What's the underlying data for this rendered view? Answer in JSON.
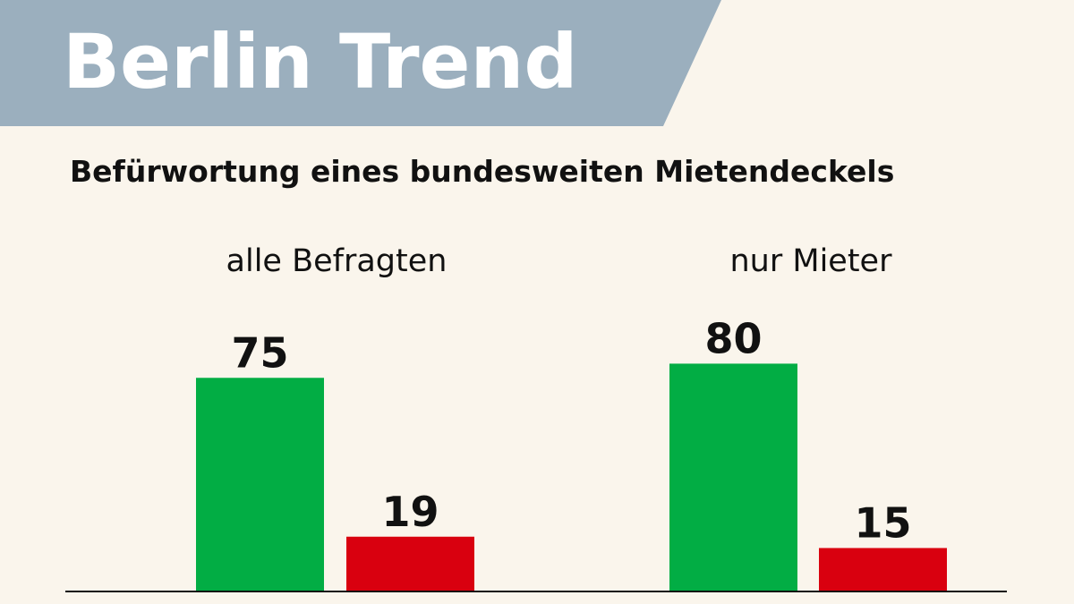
{
  "brand": "Berlin Trend",
  "colors": {
    "background": "#faf5ec",
    "header_band": "#9bafbe",
    "yes": "#02ad44",
    "no": "#d9000f",
    "text": "#111111"
  },
  "chart_data": {
    "type": "bar",
    "title": "Befürwortung eines bundesweiten Mietendeckels",
    "categories": [
      "alle Befragten",
      "nur Mieter"
    ],
    "series": [
      {
        "values": [
          75,
          80
        ],
        "color": "#02ad44"
      },
      {
        "values": [
          19,
          15
        ],
        "color": "#d9000f"
      }
    ],
    "ylim": [
      0,
      100
    ],
    "grid": false,
    "data_labels": true
  }
}
